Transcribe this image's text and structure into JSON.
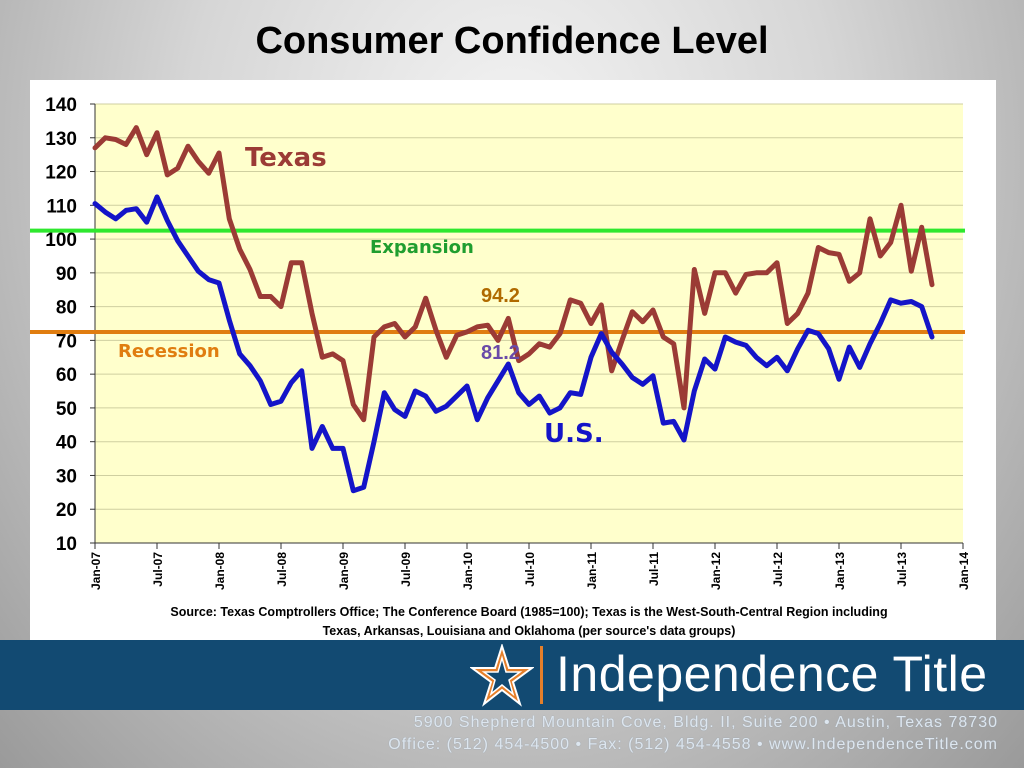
{
  "slide": {
    "title": "Consumer Confidence Level"
  },
  "chart_data": {
    "type": "line",
    "y_ticks": [
      10,
      20,
      30,
      40,
      50,
      60,
      70,
      80,
      90,
      100,
      110,
      120,
      130,
      140
    ],
    "ylim": [
      10,
      140
    ],
    "x_ticks": [
      "Jan-07",
      "Jul-07",
      "Jan-08",
      "Jul-08",
      "Jan-09",
      "Jul-09",
      "Jan-10",
      "Jul-10",
      "Jan-11",
      "Jul-11",
      "Jan-12",
      "Jul-12",
      "Jan-13",
      "Jul-13",
      "Jan-14"
    ],
    "xlim": [
      "Jan-07",
      "Jan-14"
    ],
    "grid": "horizontal",
    "series": [
      {
        "name": "Texas",
        "color": "#9b3b35",
        "x_start": "Jan-07",
        "values": [
          127,
          130,
          129.5,
          128,
          133,
          125,
          131.5,
          119,
          121,
          127.5,
          123,
          119.5,
          125.5,
          106,
          97,
          91,
          83,
          83,
          80,
          93,
          93,
          78,
          65,
          66,
          64,
          51,
          46.5,
          71,
          74,
          75,
          71,
          74,
          82.5,
          73,
          65,
          71.5,
          72.5,
          74,
          74.5,
          70,
          76.5,
          64,
          66,
          69,
          68,
          72,
          82,
          81,
          75,
          80.5,
          61,
          70,
          78.5,
          75.5,
          79,
          71,
          69,
          50,
          91,
          78,
          90,
          90,
          84,
          89.5,
          90,
          90,
          93,
          75,
          78,
          84,
          97.5,
          96,
          95.5,
          87.5,
          90,
          106,
          95,
          99,
          110,
          90.5,
          103.5,
          86.5
        ]
      },
      {
        "name": "U.S.",
        "color": "#1414c8",
        "x_start": "Jan-07",
        "values": [
          110.5,
          108,
          106,
          108.5,
          109,
          105,
          112.5,
          105.5,
          99.5,
          95,
          90.5,
          88,
          87,
          76,
          66,
          62.5,
          58,
          51,
          52,
          57.5,
          61,
          38,
          44.5,
          38,
          38,
          25.5,
          26.5,
          40,
          54.5,
          49.5,
          47.5,
          55,
          53.5,
          49,
          50.5,
          53.5,
          56.5,
          46.5,
          53,
          58,
          63,
          54.5,
          51,
          53.5,
          48.5,
          50,
          54.5,
          54,
          65,
          72,
          66.5,
          63,
          59,
          57,
          59.5,
          45.5,
          46,
          40.5,
          55,
          64.5,
          61.5,
          71,
          69.5,
          68.5,
          65,
          62.5,
          65,
          61,
          67.5,
          73,
          72,
          67.5,
          58.5,
          68,
          62,
          69,
          75,
          82,
          81,
          81.5,
          80,
          71
        ]
      }
    ],
    "reference_lines": [
      {
        "label": "Expansion",
        "value": 102.5,
        "color": "#2ee82e",
        "label_color": "#1f9e2f"
      },
      {
        "label": "Recession",
        "value": 72.5,
        "color": "#e07d10",
        "label_color": "#e07d10"
      }
    ],
    "annotations": [
      {
        "text": "94.2",
        "color": "#b06a00"
      },
      {
        "text": "81.2",
        "color": "#6a4aa8"
      }
    ],
    "plot_background": "#ffffcc",
    "source": "Source: Texas Comptrollers Office; The Conference Board (1985=100); Texas is the West-South-Central Region including Texas, Arkansas, Louisiana and Oklahoma (per source's data groups)",
    "source_lines": [
      "Source: Texas Comptrollers Office; The Conference Board (1985=100); Texas is the West-South-Central Region including",
      "Texas, Arkansas, Louisiana and Oklahoma (per source's data groups)"
    ]
  },
  "footer": {
    "company": "Independence Title",
    "address": "5900 Shepherd Mountain Cove, Bldg. II, Suite 200 • Austin, Texas 78730",
    "contact": "Office: (512) 454-4500  •  Fax: (512) 454-4558  •  www.IndependenceTitle.com",
    "band_color": "#124a72",
    "accent_color": "#e57f2a"
  },
  "icons": {
    "logo": "star-icon"
  }
}
